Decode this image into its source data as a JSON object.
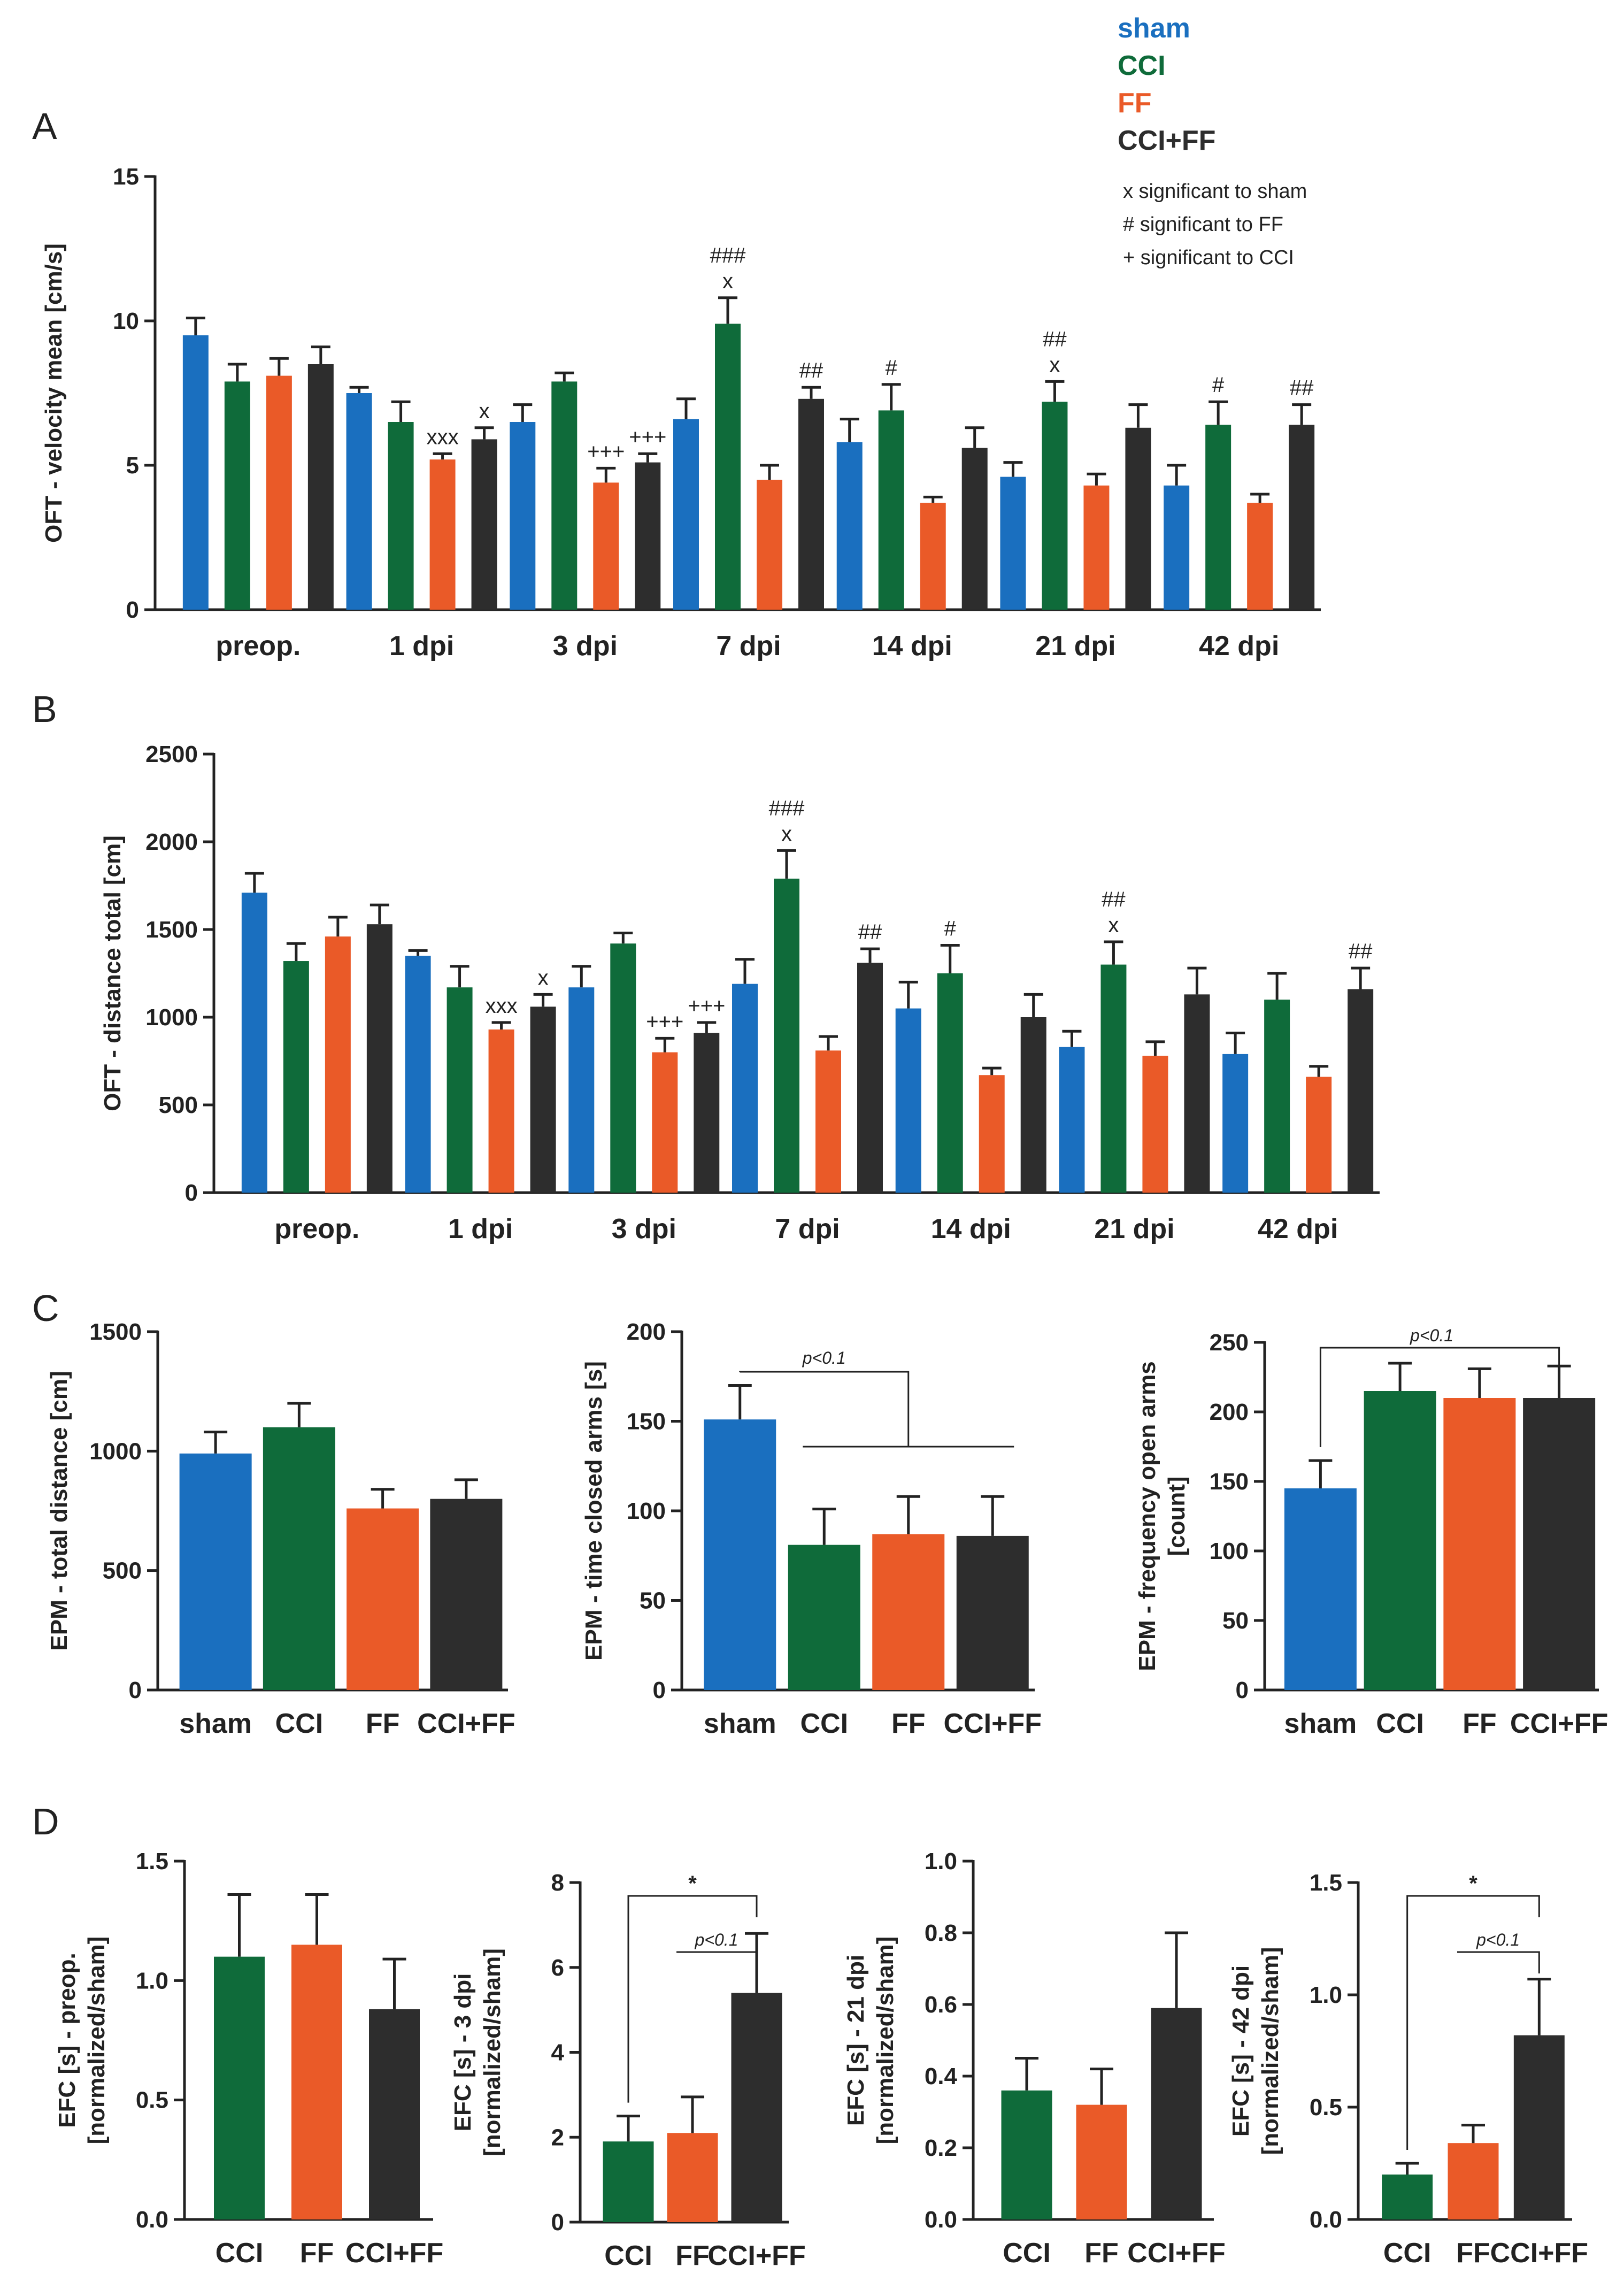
{
  "colors": {
    "sham": "#1a6fbf",
    "CCI": "#0f6b3a",
    "FF": "#ea5a28",
    "CCI+FF": "#2d2d2d"
  },
  "legend": {
    "entries": [
      {
        "key": "sham",
        "label": "sham"
      },
      {
        "key": "CCI",
        "label": "CCI"
      },
      {
        "key": "FF",
        "label": "FF"
      },
      {
        "key": "CCI+FF",
        "label": "CCI+FF"
      }
    ],
    "notes": [
      "x significant to sham",
      "# significant to FF",
      "+ significant to CCI"
    ]
  },
  "chart_data": [
    {
      "id": "A",
      "panel": "A",
      "type": "bar",
      "ylabel": "OFT - velocity mean [cm/s]",
      "ylim": [
        0,
        15
      ],
      "yticks": [
        0,
        5,
        10,
        15
      ],
      "categories": [
        "preop.",
        "1 dpi",
        "3 dpi",
        "7 dpi",
        "14 dpi",
        "21 dpi",
        "42 dpi"
      ],
      "series": [
        {
          "name": "sham",
          "values": [
            9.5,
            7.5,
            6.5,
            6.6,
            5.8,
            4.6,
            4.3
          ],
          "errors": [
            0.6,
            0.2,
            0.6,
            0.7,
            0.8,
            0.5,
            0.7
          ]
        },
        {
          "name": "CCI",
          "values": [
            7.9,
            6.5,
            7.9,
            9.9,
            6.9,
            7.2,
            6.4
          ],
          "errors": [
            0.6,
            0.7,
            0.3,
            0.9,
            0.9,
            0.7,
            0.8
          ]
        },
        {
          "name": "FF",
          "values": [
            8.1,
            5.2,
            4.4,
            4.5,
            3.7,
            4.3,
            3.7
          ],
          "errors": [
            0.6,
            0.2,
            0.5,
            0.5,
            0.2,
            0.4,
            0.3
          ]
        },
        {
          "name": "CCI+FF",
          "values": [
            8.5,
            5.9,
            5.1,
            7.3,
            5.6,
            6.3,
            6.4
          ],
          "errors": [
            0.6,
            0.4,
            0.3,
            0.4,
            0.7,
            0.8,
            0.7
          ]
        }
      ],
      "annotations": [
        {
          "cat": 1,
          "series": 2,
          "lines": [
            "xxx"
          ]
        },
        {
          "cat": 1,
          "series": 3,
          "lines": [
            "x"
          ]
        },
        {
          "cat": 2,
          "series": 2,
          "lines": [
            "+++"
          ]
        },
        {
          "cat": 2,
          "series": 3,
          "lines": [
            "+++"
          ]
        },
        {
          "cat": 3,
          "series": 1,
          "lines": [
            "###",
            "x"
          ]
        },
        {
          "cat": 3,
          "series": 3,
          "lines": [
            "##"
          ]
        },
        {
          "cat": 4,
          "series": 1,
          "lines": [
            "#"
          ]
        },
        {
          "cat": 5,
          "series": 1,
          "lines": [
            "##",
            "x"
          ]
        },
        {
          "cat": 6,
          "series": 1,
          "lines": [
            "#"
          ]
        },
        {
          "cat": 6,
          "series": 3,
          "lines": [
            "##"
          ]
        }
      ]
    },
    {
      "id": "B",
      "panel": "B",
      "type": "bar",
      "ylabel": "OFT - distance total [cm]",
      "ylim": [
        0,
        2500
      ],
      "yticks": [
        0,
        500,
        1000,
        1500,
        2000,
        2500
      ],
      "categories": [
        "preop.",
        "1 dpi",
        "3 dpi",
        "7 dpi",
        "14 dpi",
        "21 dpi",
        "42 dpi"
      ],
      "series": [
        {
          "name": "sham",
          "values": [
            1710,
            1350,
            1170,
            1190,
            1050,
            830,
            790
          ],
          "errors": [
            110,
            30,
            120,
            140,
            150,
            90,
            120
          ]
        },
        {
          "name": "CCI",
          "values": [
            1320,
            1170,
            1420,
            1790,
            1250,
            1300,
            1100
          ],
          "errors": [
            100,
            120,
            60,
            160,
            160,
            130,
            150
          ]
        },
        {
          "name": "FF",
          "values": [
            1460,
            930,
            800,
            810,
            670,
            780,
            660
          ],
          "errors": [
            110,
            40,
            80,
            80,
            40,
            80,
            60
          ]
        },
        {
          "name": "CCI+FF",
          "values": [
            1530,
            1060,
            910,
            1310,
            1000,
            1130,
            1160
          ],
          "errors": [
            110,
            70,
            60,
            80,
            130,
            150,
            120
          ]
        }
      ],
      "annotations": [
        {
          "cat": 1,
          "series": 2,
          "lines": [
            "xxx"
          ]
        },
        {
          "cat": 1,
          "series": 3,
          "lines": [
            "x"
          ]
        },
        {
          "cat": 2,
          "series": 2,
          "lines": [
            "+++"
          ]
        },
        {
          "cat": 2,
          "series": 3,
          "lines": [
            "+++"
          ]
        },
        {
          "cat": 3,
          "series": 1,
          "lines": [
            "###",
            "x"
          ]
        },
        {
          "cat": 3,
          "series": 3,
          "lines": [
            "##"
          ]
        },
        {
          "cat": 4,
          "series": 1,
          "lines": [
            "#"
          ]
        },
        {
          "cat": 5,
          "series": 1,
          "lines": [
            "##",
            "x"
          ]
        },
        {
          "cat": 6,
          "series": 3,
          "lines": [
            "##"
          ]
        }
      ]
    },
    {
      "id": "C1",
      "panel": "C",
      "type": "bar",
      "ylabel": [
        "EPM - total distance [cm]"
      ],
      "ylim": [
        0,
        1500
      ],
      "yticks": [
        0,
        500,
        1000,
        1500
      ],
      "categories": [
        "sham",
        "CCI",
        "FF",
        "CCI+FF"
      ],
      "values": [
        990,
        1100,
        760,
        800
      ],
      "errors": [
        90,
        100,
        80,
        80
      ],
      "brackets": []
    },
    {
      "id": "C2",
      "panel": "",
      "type": "bar",
      "ylabel": [
        "EPM - time closed arms [s]"
      ],
      "ylim": [
        0,
        200
      ],
      "yticks": [
        0,
        50,
        100,
        150,
        200
      ],
      "categories": [
        "sham",
        "CCI",
        "FF",
        "CCI+FF"
      ],
      "values": [
        151,
        81,
        87,
        86
      ],
      "errors": [
        19,
        20,
        21,
        22
      ],
      "brackets": [
        {
          "kind": "one-vs-group",
          "label": "p<0.1"
        }
      ]
    },
    {
      "id": "C3",
      "panel": "",
      "type": "bar",
      "ylabel": [
        "EPM - frequency open arms",
        "[count]"
      ],
      "ylim": [
        0,
        250
      ],
      "yticks": [
        0,
        50,
        100,
        150,
        200,
        250
      ],
      "categories": [
        "sham",
        "CCI",
        "FF",
        "CCI+FF"
      ],
      "values": [
        145,
        215,
        210,
        210
      ],
      "errors": [
        20,
        20,
        21,
        23
      ],
      "brackets": [
        {
          "kind": "pair",
          "from": 0,
          "to": 3,
          "label": "p<0.1"
        }
      ]
    },
    {
      "id": "D1",
      "panel": "D",
      "type": "bar",
      "ylabel": [
        "EFC [s] - preop.",
        "[normalized/sham]"
      ],
      "ylim": [
        0,
        1.5
      ],
      "yticks": [
        "0.0",
        "0.5",
        "1.0",
        "1.5"
      ],
      "categories": [
        "CCI",
        "FF",
        "CCI+FF"
      ],
      "values": [
        1.1,
        1.15,
        0.88
      ],
      "errors": [
        0.26,
        0.21,
        0.21
      ],
      "brackets": []
    },
    {
      "id": "D2",
      "panel": "",
      "type": "bar",
      "ylabel": [
        "EFC [s] - 3 dpi",
        "[normalized/sham]"
      ],
      "ylim": [
        0,
        8
      ],
      "yticks": [
        0,
        2,
        4,
        6,
        8
      ],
      "categories": [
        "CCI",
        "FF",
        "CCI+FF"
      ],
      "values": [
        1.9,
        2.1,
        5.4
      ],
      "errors": [
        0.6,
        0.85,
        1.4
      ],
      "brackets": [
        {
          "kind": "pair",
          "from": 0,
          "to": 2,
          "label": "*",
          "level": 0
        },
        {
          "kind": "pair",
          "from": 1,
          "to": 2,
          "label": "p<0.1",
          "level": 1
        }
      ]
    },
    {
      "id": "D3",
      "panel": "",
      "type": "bar",
      "ylabel": [
        "EFC [s] - 21 dpi",
        "[normalized/sham]"
      ],
      "ylim": [
        0,
        1.0
      ],
      "yticks": [
        "0.0",
        "0.2",
        "0.4",
        "0.6",
        "0.8",
        "1.0"
      ],
      "categories": [
        "CCI",
        "FF",
        "CCI+FF"
      ],
      "values": [
        0.36,
        0.32,
        0.59
      ],
      "errors": [
        0.09,
        0.1,
        0.21
      ],
      "brackets": []
    },
    {
      "id": "D4",
      "panel": "",
      "type": "bar",
      "ylabel": [
        "EFC [s] - 42 dpi",
        "[normalized/sham]"
      ],
      "ylim": [
        0,
        1.5
      ],
      "yticks": [
        "0.0",
        "0.5",
        "1.0",
        "1.5"
      ],
      "categories": [
        "CCI",
        "FF",
        "CCI+FF"
      ],
      "values": [
        0.2,
        0.34,
        0.82
      ],
      "errors": [
        0.05,
        0.08,
        0.25
      ],
      "brackets": [
        {
          "kind": "pair",
          "from": 0,
          "to": 2,
          "label": "*",
          "level": 0
        },
        {
          "kind": "pair",
          "from": 1,
          "to": 2,
          "label": "p<0.1",
          "level": 1
        }
      ]
    }
  ]
}
